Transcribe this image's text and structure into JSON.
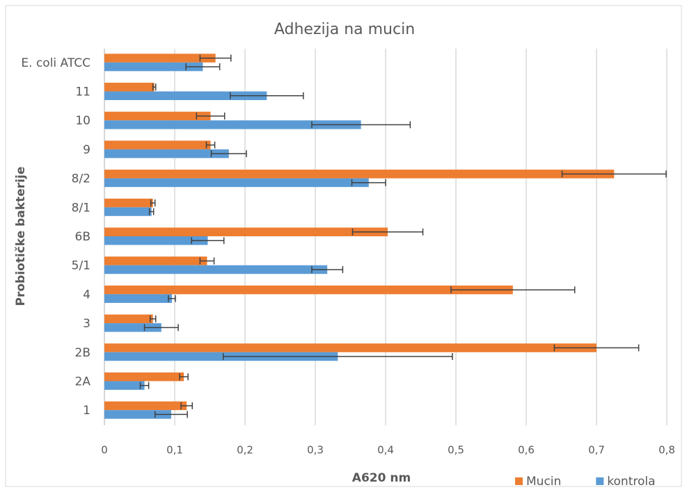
{
  "chart_data": {
    "type": "bar",
    "orientation": "horizontal",
    "title": "Adhezija na mucin",
    "xlabel": "A620 nm",
    "ylabel": "Probiotičke bakterije",
    "categories": [
      "1",
      "2A",
      "2B",
      "3",
      "4",
      "5/1",
      "6B",
      "8/1",
      "8/2",
      "9",
      "10",
      "11",
      "E. coli ATCC"
    ],
    "series": [
      {
        "name": "Mucin",
        "color": "#ed7d31",
        "values": [
          0.117,
          0.113,
          0.7,
          0.069,
          0.581,
          0.146,
          0.403,
          0.069,
          0.725,
          0.151,
          0.151,
          0.071,
          0.158
        ],
        "errors": [
          0.008,
          0.006,
          0.06,
          0.004,
          0.088,
          0.01,
          0.05,
          0.003,
          0.074,
          0.006,
          0.02,
          0.002,
          0.022
        ]
      },
      {
        "name": "kontrola",
        "color": "#5b9bd5",
        "values": [
          0.095,
          0.057,
          0.332,
          0.081,
          0.096,
          0.317,
          0.147,
          0.067,
          0.376,
          0.177,
          0.365,
          0.231,
          0.14
        ],
        "errors": [
          0.023,
          0.006,
          0.163,
          0.024,
          0.005,
          0.022,
          0.023,
          0.003,
          0.024,
          0.025,
          0.07,
          0.052,
          0.024
        ]
      }
    ],
    "xlim": [
      0,
      0.8
    ],
    "xticks": [
      0,
      {
        "value": 0.1,
        "label": "0,1"
      },
      {
        "value": 0.2,
        "label": "0,2"
      },
      {
        "value": 0.3,
        "label": "0,3"
      },
      {
        "value": 0.4,
        "label": "0,4"
      },
      {
        "value": 0.5,
        "label": "0,5"
      },
      {
        "value": 0.6,
        "label": "0,6"
      },
      {
        "value": 0.7,
        "label": "0,7"
      },
      {
        "value": 0.8,
        "label": "0,8"
      }
    ],
    "grid": true,
    "legend": "bottom-right"
  }
}
